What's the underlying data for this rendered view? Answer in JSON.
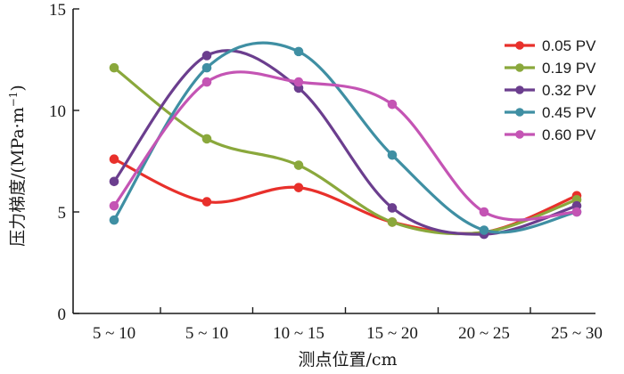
{
  "chart_data": {
    "type": "line",
    "xlabel": "测点位置/cm",
    "ylabel_main": "压力梯度/(MPa·m",
    "ylabel_sup": "−1",
    "ylabel_close": ")",
    "categories": [
      "5 ~ 10",
      "5 ~ 10",
      "10 ~ 15",
      "15 ~ 20",
      "20 ~ 25",
      "25 ~ 30"
    ],
    "ylim": [
      0,
      15
    ],
    "yticks": [
      "0",
      "5",
      "10",
      "15"
    ],
    "smooth": true,
    "legend_position": "top-right",
    "grid": false,
    "series": [
      {
        "name": "0.05 PV",
        "color": "#e8302b",
        "values": [
          7.6,
          5.5,
          6.2,
          4.5,
          4.0,
          5.8
        ]
      },
      {
        "name": "0.19 PV",
        "color": "#8aa83c",
        "values": [
          12.1,
          8.6,
          7.3,
          4.5,
          4.0,
          5.6
        ]
      },
      {
        "name": "0.32 PV",
        "color": "#6b3e8e",
        "values": [
          6.5,
          12.7,
          11.1,
          5.2,
          3.9,
          5.3
        ]
      },
      {
        "name": "0.45 PV",
        "color": "#3f8fa3",
        "values": [
          4.6,
          12.1,
          12.9,
          7.8,
          4.1,
          5.0
        ]
      },
      {
        "name": "0.60 PV",
        "color": "#c454b4",
        "values": [
          5.3,
          11.4,
          11.4,
          10.3,
          5.0,
          5.0
        ]
      }
    ]
  }
}
